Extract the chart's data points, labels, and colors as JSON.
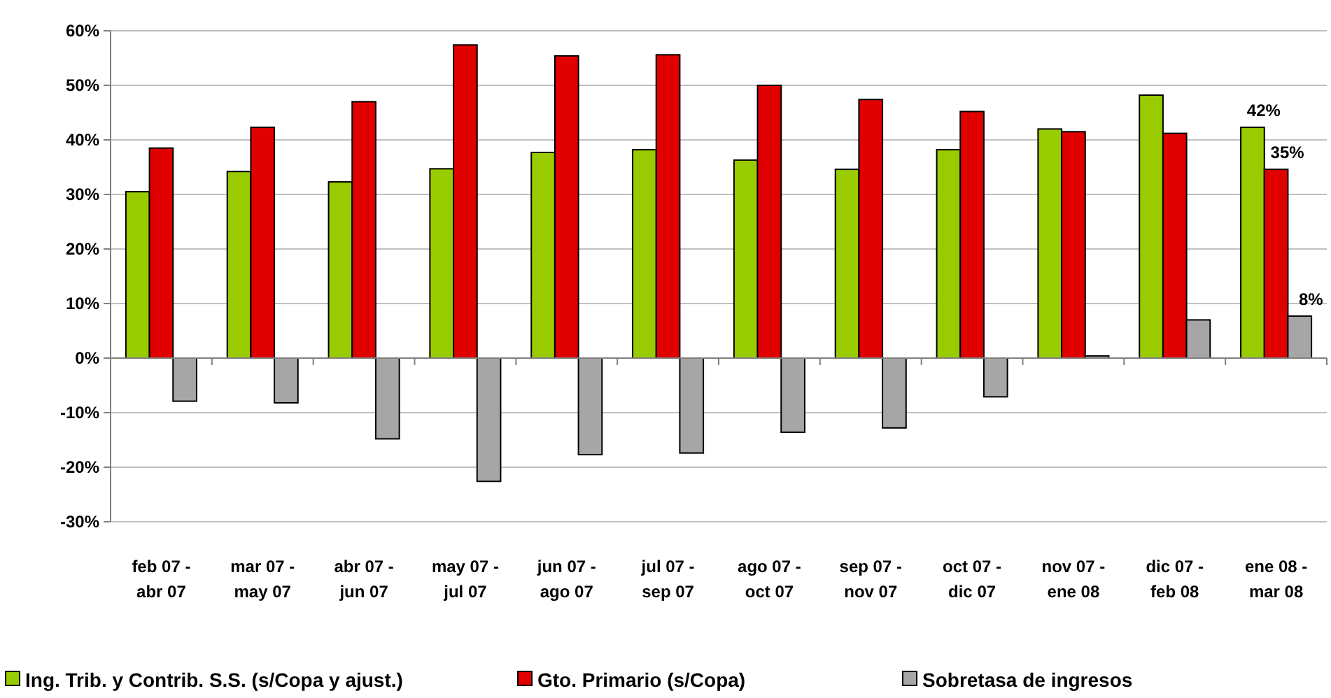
{
  "chart_data": {
    "type": "bar",
    "categories": [
      "feb 07 - abr 07",
      "mar 07 - may 07",
      "abr 07 - jun 07",
      "may 07 - jul 07",
      "jun 07 - ago 07",
      "jul 07 - sep 07",
      "ago 07 - oct 07",
      "sep 07 - nov 07",
      "oct 07 - dic 07",
      "nov 07 - ene 08",
      "dic 07 - feb 08",
      "ene 08 - mar 08"
    ],
    "series": [
      {
        "name": "Ing. Trib. y Contrib. S.S. (s/Copa y ajust.)",
        "color": "#99cc00",
        "values": [
          30.5,
          34.2,
          32.3,
          34.7,
          37.7,
          38.2,
          36.3,
          34.6,
          38.2,
          42.0,
          48.2,
          42.3
        ],
        "value_labels": [
          null,
          null,
          null,
          null,
          null,
          null,
          null,
          null,
          null,
          null,
          null,
          "42%"
        ]
      },
      {
        "name": "Gto. Primario (s/Copa)",
        "color": "#e00000",
        "values": [
          38.5,
          42.3,
          47.0,
          57.4,
          55.4,
          55.6,
          50.0,
          47.4,
          45.2,
          41.5,
          41.2,
          34.6
        ],
        "value_labels": [
          null,
          null,
          null,
          null,
          null,
          null,
          null,
          null,
          null,
          null,
          null,
          "35%"
        ]
      },
      {
        "name": "Sobretasa de ingresos",
        "color": "#a6a6a6",
        "values": [
          -7.9,
          -8.2,
          -14.8,
          -22.6,
          -17.7,
          -17.4,
          -13.6,
          -12.8,
          -7.1,
          0.4,
          7.0,
          7.7
        ],
        "value_labels": [
          null,
          null,
          null,
          null,
          null,
          null,
          null,
          null,
          null,
          null,
          null,
          "8%"
        ]
      }
    ],
    "ylim": [
      -30,
      60
    ],
    "yticks": [
      {
        "value": -30,
        "label": "-30%"
      },
      {
        "value": -20,
        "label": "-20%"
      },
      {
        "value": -10,
        "label": "-10%"
      },
      {
        "value": 0,
        "label": "0%"
      },
      {
        "value": 10,
        "label": "10%"
      },
      {
        "value": 20,
        "label": "20%"
      },
      {
        "value": 30,
        "label": "30%"
      },
      {
        "value": 40,
        "label": "40%"
      },
      {
        "value": 50,
        "label": "50%"
      },
      {
        "value": 60,
        "label": "60%"
      }
    ],
    "grid": "y",
    "legend": "bottom"
  }
}
